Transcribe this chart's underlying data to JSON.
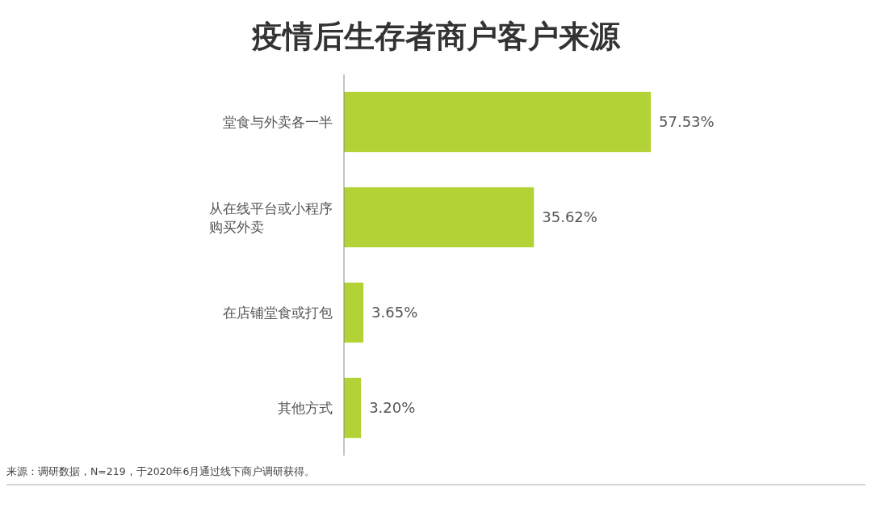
{
  "chart_data": {
    "type": "bar",
    "orientation": "horizontal",
    "data_labels": true,
    "title": "疫情后生存者商户客户来源",
    "categories": [
      "堂食与外卖各一半",
      "从在线平台或小程序购买外卖",
      "在店铺堂食或打包",
      "其他方式"
    ],
    "values": [
      57.53,
      35.62,
      3.65,
      3.2
    ],
    "value_labels": [
      "57.53%",
      "35.62%",
      "3.65%",
      "3.20%"
    ],
    "color": "#b3d235",
    "annotations": [
      "来源：调研数据，N=219，于2020年6月通过线下商户调研获得。"
    ]
  }
}
